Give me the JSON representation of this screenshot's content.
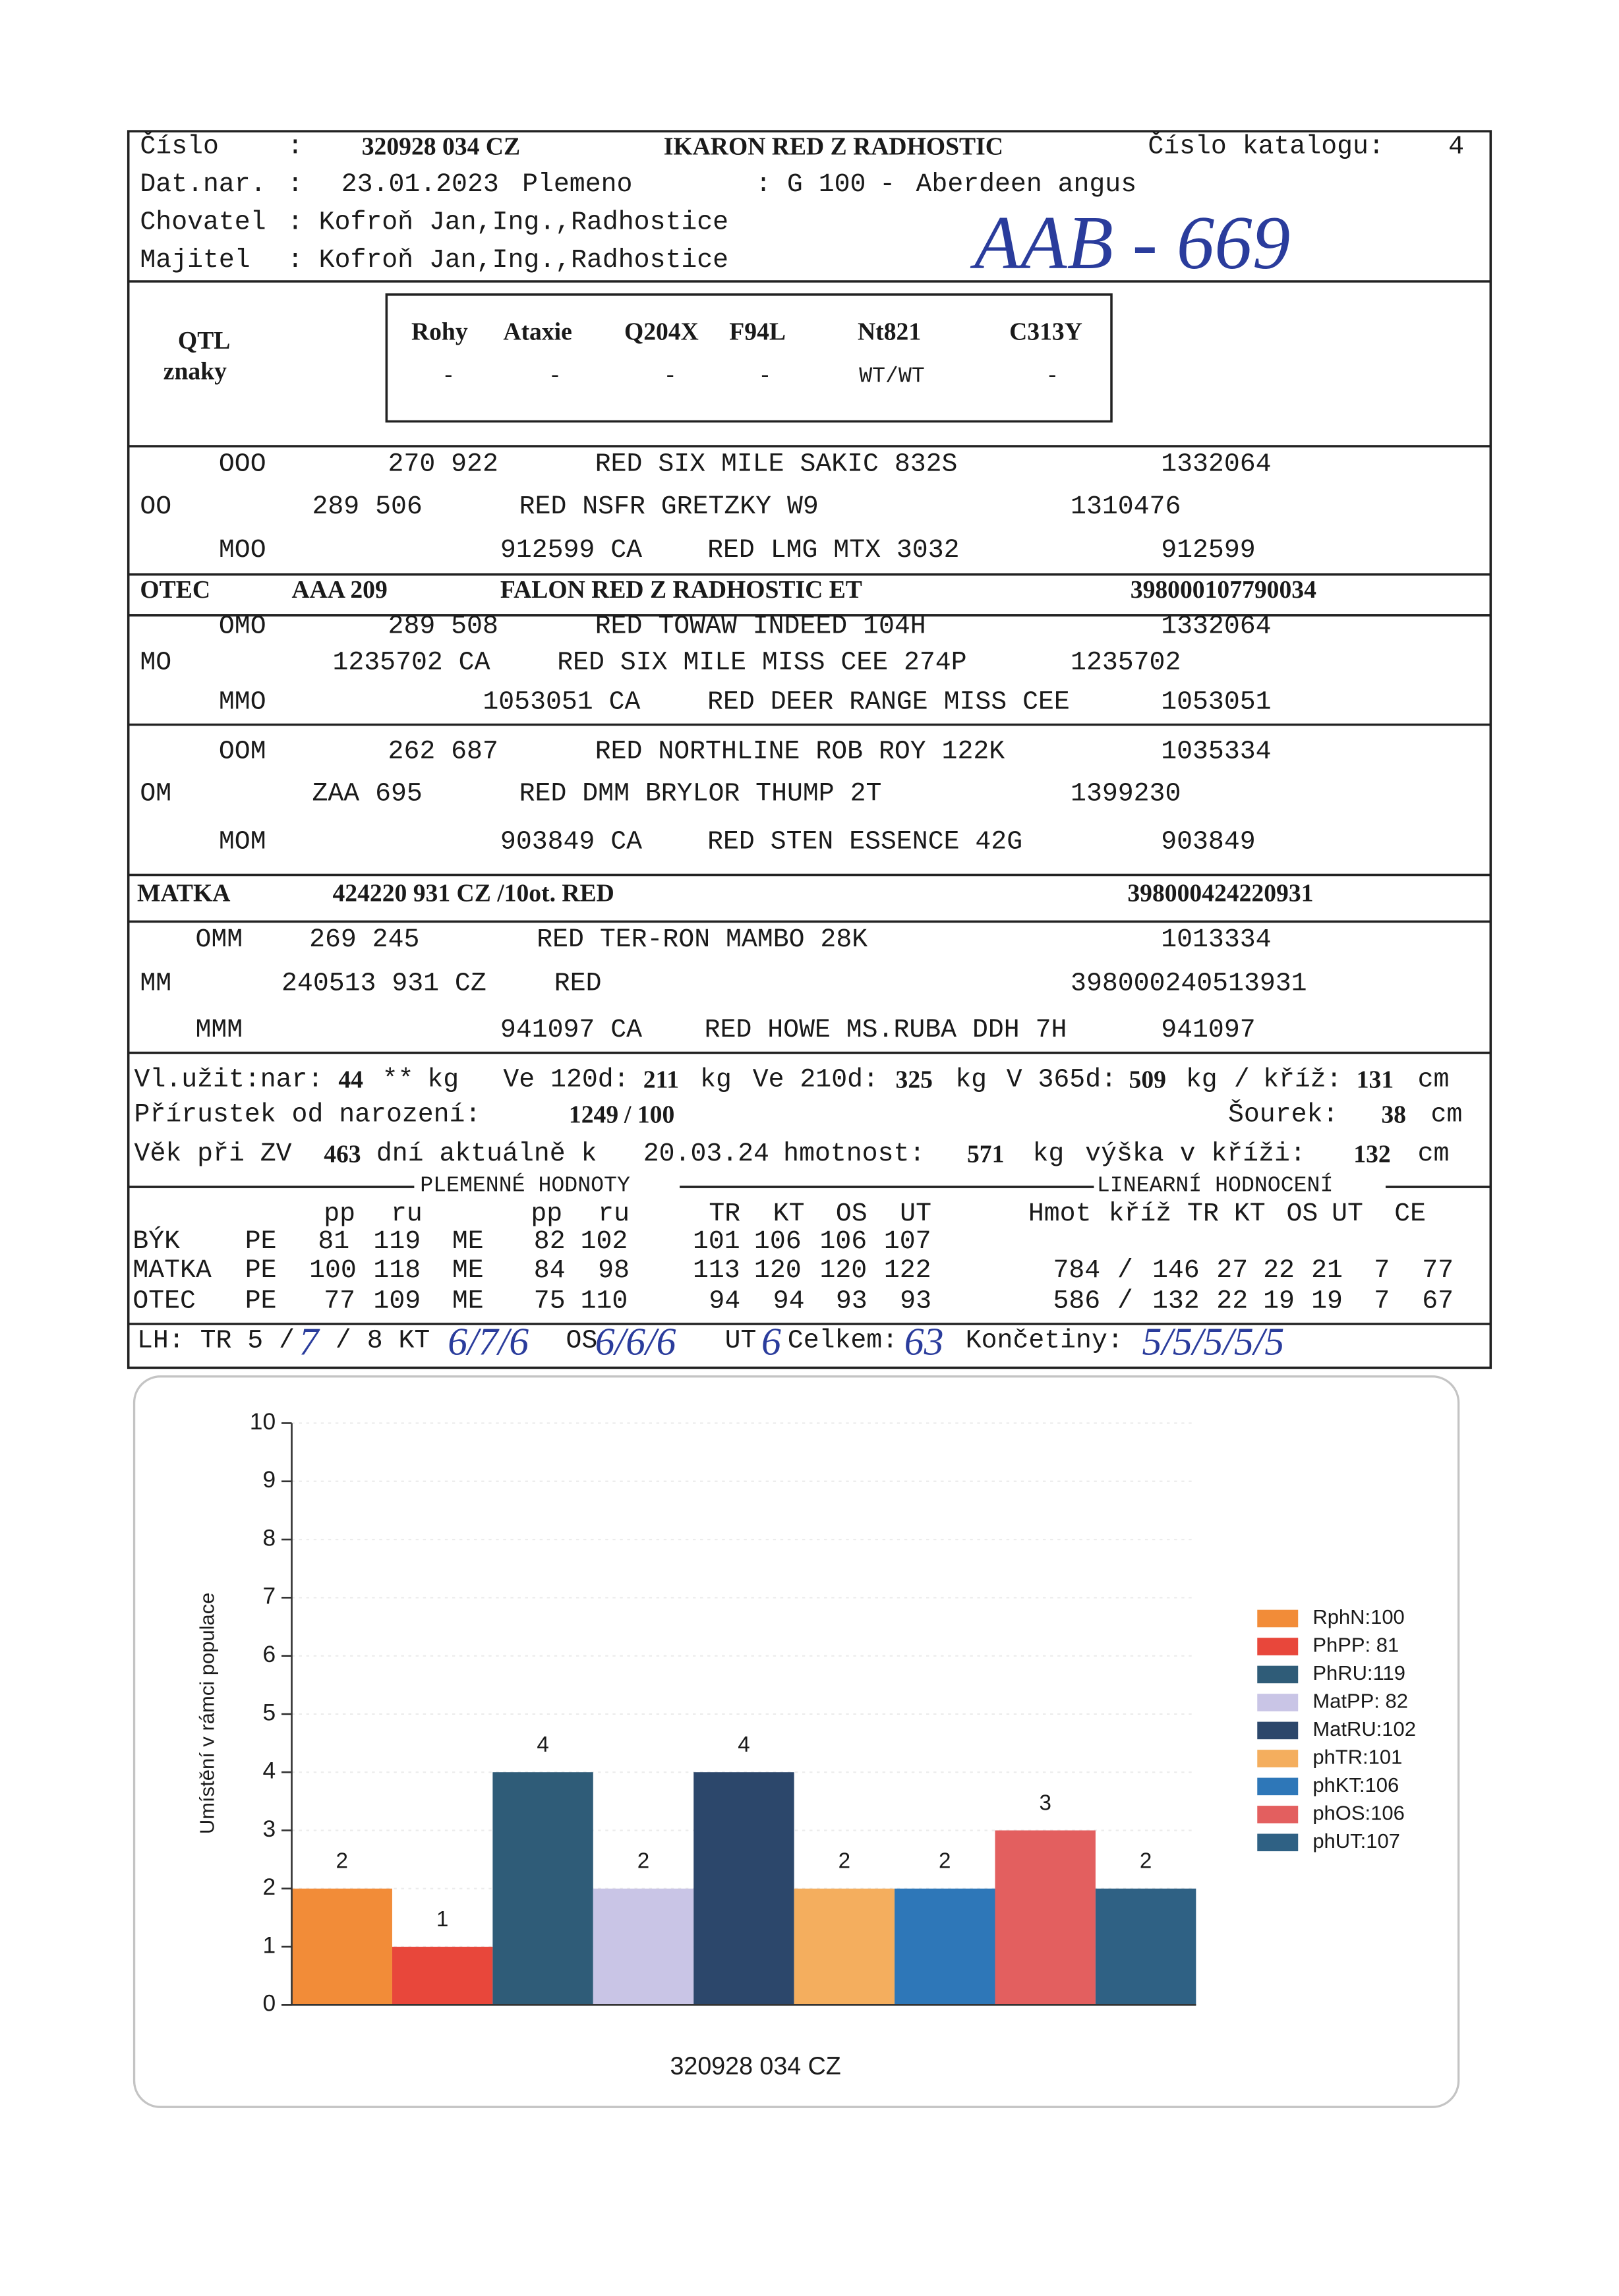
{
  "header": {
    "lines": [
      [
        "Číslo",
        ":",
        "320928 034 CZ",
        "IKARON RED Z RADHOSTIC",
        "Číslo katalogu:",
        "4"
      ],
      [
        "Dat.nar.",
        ":",
        "23.01.2023",
        "Plemeno",
        ": G 100",
        "-",
        "Aberdeen angus"
      ],
      [
        "Chovatel",
        ": Kofroň Jan,Ing.,Radhostice"
      ],
      [
        "Majitel",
        ": Kofroň Jan,Ing.,Radhostice"
      ]
    ]
  },
  "handwritten_code": "AAB - 669",
  "qtl": {
    "label": [
      "QTL",
      "znaky"
    ],
    "headers": [
      "Rohy",
      "Ataxie",
      "Q204X",
      "F94L",
      "Nt821",
      "C313Y"
    ],
    "values": [
      "-",
      "-",
      "-",
      "-",
      "WT/WT",
      "-"
    ]
  },
  "pedigree": [
    [
      "OOO",
      "270 922",
      "RED SIX MILE SAKIC 832S",
      "1332064"
    ],
    [
      "OO",
      "289 506",
      "RED NSFR GRETZKY W9",
      "1310476"
    ],
    [
      "MOO",
      "912599 CA",
      "RED LMG MTX 3032",
      "912599"
    ],
    [
      "OTEC",
      "AAA 209",
      "FALON RED Z RADHOSTIC ET",
      "398000107790034"
    ],
    [
      "OMO",
      "289 508",
      "RED TOWAW INDEED 104H",
      "1332064"
    ],
    [
      "MO",
      "1235702 CA",
      "RED SIX MILE MISS CEE 274P",
      "1235702"
    ],
    [
      "MMO",
      "1053051 CA",
      "RED DEER RANGE MISS CEE",
      "1053051"
    ],
    [
      "OOM",
      "262 687",
      "RED NORTHLINE ROB ROY 122K",
      "1035334"
    ],
    [
      "OM",
      "ZAA 695",
      "RED DMM BRYLOR THUMP 2T",
      "1399230"
    ],
    [
      "MOM",
      "903849 CA",
      "RED STEN ESSENCE 42G",
      "903849"
    ],
    [
      "MATKA",
      "424220 931 CZ /10ot. RED",
      "398000424220931"
    ],
    [
      "OMM",
      "269 245",
      "RED TER-RON MAMBO 28K",
      "1013334"
    ],
    [
      "MM",
      "240513 931 CZ",
      "RED",
      "398000240513931"
    ],
    [
      "MMM",
      "941097 CA",
      "RED HOWE MS.RUBA DDH 7H",
      "941097"
    ]
  ],
  "performance": [
    [
      "Vl.užit:nar:",
      "44",
      "**",
      "kg",
      "Ve 120d:",
      "211",
      "kg",
      "Ve 210d:",
      "325",
      "kg",
      "V 365d:",
      "509",
      "kg",
      "/",
      "kříž:",
      "131",
      "cm"
    ],
    [
      "Přírustek od narození:",
      "1249",
      "/ 100",
      "Šourek:",
      "38",
      "cm"
    ],
    [
      "Věk při ZV",
      "463",
      "dní aktuálně k",
      "20.03.24",
      "hmotnost:",
      "571",
      "kg",
      "výška v kříži:",
      "132",
      "cm"
    ]
  ],
  "breeding_values": {
    "left_title": "PLEMENNÉ HODNOTY",
    "right_title": "LINEARNÍ HODNOCENÍ",
    "header": [
      "pp",
      "ru",
      "pp",
      "ru",
      "TR",
      "KT",
      "OS",
      "UT",
      "Hmot",
      "kříž",
      "TR",
      "KT",
      "OS",
      "UT",
      "CE"
    ],
    "rows": [
      [
        "BÝK",
        "PE",
        "81",
        "119",
        "ME",
        "82",
        "102",
        "101",
        "106",
        "106",
        "107"
      ],
      [
        "MATKA",
        "PE",
        "100",
        "118",
        "ME",
        "84",
        "98",
        "113",
        "120",
        "120",
        "122",
        "784",
        "/",
        "146",
        "27",
        "22",
        "21",
        "7",
        "77"
      ],
      [
        "OTEC",
        "PE",
        "77",
        "109",
        "ME",
        "75",
        "110",
        "94",
        "94",
        "93",
        "93",
        "586",
        "/",
        "132",
        "22",
        "19",
        "19",
        "7",
        "67"
      ]
    ]
  },
  "lh_row": [
    "LH: TR 5 /",
    "7",
    "/ 8 KT",
    "6/7/6",
    "OS",
    "6/6/6",
    "UT",
    "6",
    "Celkem:",
    "63",
    "Končetiny:",
    "5/5/5/5/5"
  ],
  "chart_data": {
    "type": "bar",
    "y_label": "Umístění v rámci populace",
    "x_label": "320928 034 CZ",
    "categories": [
      "RphN:100",
      "PhPP: 81",
      "PhRU:119",
      "MatPP: 82",
      "MatRU:102",
      "phTR:101",
      "phKT:106",
      "phOS:106",
      "phUT:107"
    ],
    "values": [
      2,
      1,
      4,
      2,
      4,
      2,
      2,
      3,
      2
    ],
    "colors": [
      "#f28c38",
      "#e8473b",
      "#2f5c78",
      "#c9c5e6",
      "#2c476b",
      "#f4ae5e",
      "#2e77b8",
      "#e35f5f",
      "#2f6184"
    ],
    "ylim": [
      0,
      10
    ],
    "yticks": [
      0,
      1,
      2,
      3,
      4,
      5,
      6,
      7,
      8,
      9,
      10
    ],
    "grid": true
  }
}
